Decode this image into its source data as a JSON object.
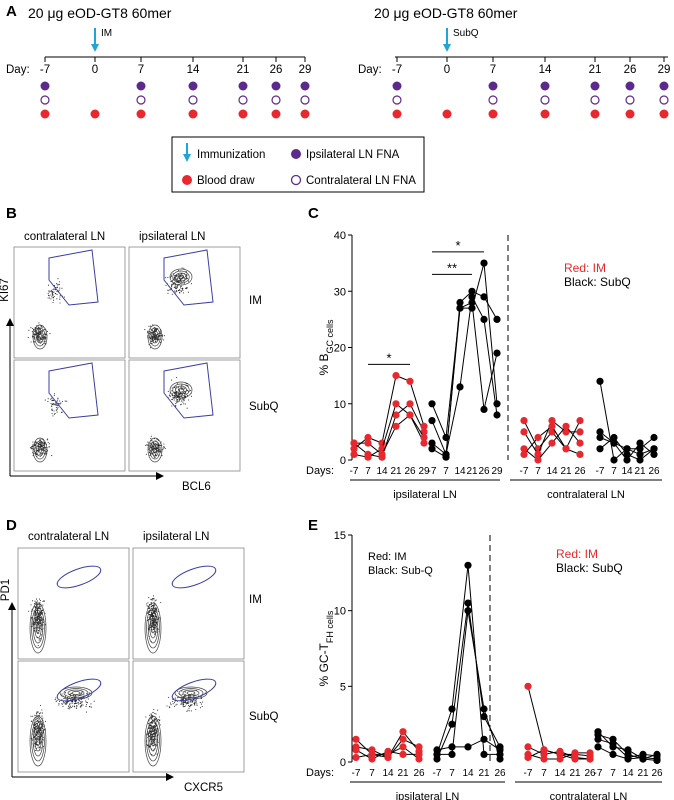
{
  "panel_letters": {
    "A": "A",
    "B": "B",
    "C": "C",
    "D": "D",
    "E": "E"
  },
  "schedule_im": {
    "title": "20 μg eOD-GT8 60mer",
    "route": "IM",
    "day_label": "Day:",
    "days": [
      "-7",
      "0",
      "7",
      "14",
      "21",
      "26",
      "29"
    ],
    "ipsilateral": [
      true,
      false,
      true,
      true,
      true,
      true,
      true
    ],
    "contralateral": [
      true,
      false,
      true,
      true,
      true,
      true,
      true
    ],
    "blood": [
      true,
      true,
      true,
      true,
      true,
      true,
      true
    ]
  },
  "schedule_subq": {
    "title": "20 μg eOD-GT8 60mer",
    "route": "SubQ",
    "day_label": "Day:",
    "days": [
      "-7",
      "0",
      "7",
      "14",
      "21",
      "26",
      "29"
    ],
    "ipsilateral": [
      true,
      false,
      true,
      true,
      true,
      true,
      true
    ],
    "contralateral": [
      true,
      false,
      true,
      true,
      true,
      true,
      true
    ],
    "blood": [
      true,
      true,
      true,
      true,
      true,
      true,
      true
    ]
  },
  "legend": {
    "immunization": "Immunization",
    "blood_draw": "Blood draw",
    "ipsilateral": "Ipsilateral LN FNA",
    "contralateral": "Contralateral LN FNA"
  },
  "colors": {
    "purple": "#5b2a8c",
    "red": "#e8282e",
    "blue": "#1fa6d9",
    "gate": "#3a3fa0"
  },
  "flow_b": {
    "col_labels": [
      "contralateral LN",
      "ipsilateral LN"
    ],
    "row_labels": [
      "IM",
      "SubQ"
    ],
    "y_axis": "KI67",
    "x_axis": "BCL6"
  },
  "flow_d": {
    "col_labels": [
      "contralateral LN",
      "ipsilateral LN"
    ],
    "row_labels": [
      "IM",
      "SubQ"
    ],
    "y_axis": "PD1",
    "x_axis": "CXCR5"
  },
  "chart_data": [
    {
      "type": "scatter",
      "panel": "C",
      "ylabel": "% B_GC cells",
      "ylim": [
        0,
        40
      ],
      "yticks": [
        "0",
        "10",
        "20",
        "30",
        "40"
      ],
      "days_label": "Days:",
      "groups": [
        {
          "name": "ipsilateral LN IM",
          "x": [
            "-7",
            "7",
            "14",
            "21",
            "26",
            "29"
          ],
          "color": "#e8282e",
          "lines": [
            [
              3,
              1,
              0.5,
              8,
              10,
              5
            ],
            [
              2,
              4,
              3,
              15,
              14,
              6
            ],
            [
              1,
              0.5,
              2,
              10,
              8,
              3
            ],
            [
              3,
              3,
              1,
              6,
              8,
              4
            ]
          ]
        },
        {
          "name": "ipsilateral LN SubQ",
          "x": [
            "-7",
            "7",
            "14",
            "21",
            "26",
            "29"
          ],
          "color": "#000000",
          "lines": [
            [
              10,
              4,
              27,
              27,
              35,
              10
            ],
            [
              3,
              1,
              13,
              29,
              25,
              8
            ],
            [
              7,
              1,
              27,
              28,
              9,
              19
            ],
            [
              2,
              0.5,
              28,
              30,
              29,
              25
            ]
          ]
        },
        {
          "name": "contralateral LN IM",
          "x": [
            "-7",
            "7",
            "14",
            "21",
            "26"
          ],
          "color": "#e8282e",
          "lines": [
            [
              7,
              2,
              5,
              2,
              7
            ],
            [
              5,
              1,
              7,
              5,
              5
            ],
            [
              1,
              4,
              6,
              2,
              1
            ],
            [
              2,
              0,
              3,
              6,
              3
            ]
          ]
        },
        {
          "name": "contralateral LN SubQ",
          "x": [
            "-7",
            "7",
            "14",
            "21",
            "26"
          ],
          "color": "#000000",
          "lines": [
            [
              14,
              0,
              2,
              2,
              4
            ],
            [
              5,
              3,
              0,
              3,
              1
            ],
            [
              4,
              3,
              2,
              1,
              2
            ],
            [
              2,
              4,
              1,
              0,
              2
            ]
          ]
        }
      ],
      "group_labels": [
        "ipsilateral LN",
        "contralateral LN"
      ],
      "annotations": [
        "*",
        "*",
        "**"
      ],
      "legend": [
        "Red: IM",
        "Black: SubQ"
      ]
    },
    {
      "type": "scatter",
      "panel": "E",
      "ylabel": "% GC-T_FH cells",
      "ylim": [
        0,
        15
      ],
      "yticks": [
        "0",
        "5",
        "10",
        "15"
      ],
      "days_label": "Days:",
      "groups": [
        {
          "name": "ipsilateral LN IM",
          "x": [
            "-7",
            "7",
            "14",
            "21",
            "26"
          ],
          "color": "#e8282e",
          "lines": [
            [
              1.5,
              0.5,
              0.3,
              2,
              0.7
            ],
            [
              1,
              0.8,
              0.3,
              1.5,
              1
            ],
            [
              0.3,
              0.5,
              0.5,
              1,
              0.2
            ],
            [
              0.8,
              0.2,
              0.7,
              0.5,
              0.5
            ]
          ]
        },
        {
          "name": "ipsilateral LN SubQ",
          "x": [
            "-7",
            "7",
            "14",
            "21",
            "26"
          ],
          "color": "#000000",
          "lines": [
            [
              0.5,
              3.5,
              13,
              0.5,
              0.5
            ],
            [
              0.2,
              2.5,
              10.5,
              3,
              1
            ],
            [
              0.5,
              0.5,
              10,
              3.5,
              0.2
            ],
            [
              0.8,
              1,
              1,
              1.5,
              0.8
            ]
          ]
        },
        {
          "name": "contralateral LN IM",
          "x": [
            "-7",
            "7",
            "14",
            "21",
            "26"
          ],
          "color": "#e8282e",
          "lines": [
            [
              5,
              0.8,
              0.5,
              0.5,
              0.4
            ],
            [
              1,
              0.5,
              0.7,
              0.3,
              0.2
            ],
            [
              0.5,
              0.2,
              0.2,
              0.6,
              0.6
            ],
            [
              0.3,
              0.8,
              0.5,
              0.2,
              0.2
            ]
          ]
        },
        {
          "name": "contralateral LN SubQ",
          "x": [
            "-7",
            "7",
            "14",
            "21",
            "26"
          ],
          "color": "#000000",
          "lines": [
            [
              2,
              1,
              0.8,
              0.2,
              0.5
            ],
            [
              1.5,
              1.2,
              0.3,
              0.5,
              0.4
            ],
            [
              1,
              0.5,
              0.2,
              0.3,
              0.2
            ],
            [
              1.8,
              1.5,
              0.5,
              0.2,
              0.1
            ]
          ]
        }
      ],
      "group_labels": [
        "ipsilateral LN",
        "contralateral LN"
      ],
      "legend_left": [
        "Red: IM",
        "Black: Sub-Q"
      ],
      "legend": [
        "Red: IM",
        "Black: SubQ"
      ]
    }
  ]
}
